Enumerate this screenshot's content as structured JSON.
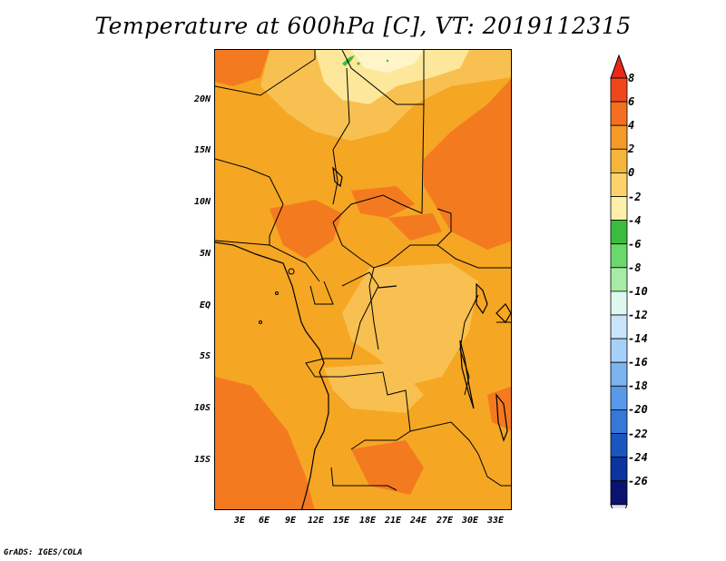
{
  "title": "Temperature at 600hPa [C], VT: 2019112315",
  "credit": "GrADS: IGES/COLA",
  "axes": {
    "lat_labels": [
      "20N",
      "15N",
      "10N",
      "5N",
      "EQ",
      "5S",
      "10S",
      "15S"
    ],
    "lon_labels": [
      "3E",
      "6E",
      "9E",
      "12E",
      "15E",
      "18E",
      "21E",
      "24E",
      "27E",
      "30E",
      "33E"
    ]
  },
  "colorbar": {
    "labels": [
      "8",
      "6",
      "4",
      "2",
      "0",
      "-2",
      "-4",
      "-6",
      "-8",
      "-10",
      "-12",
      "-14",
      "-16",
      "-18",
      "-20",
      "-22",
      "-24",
      "-26"
    ],
    "colors": [
      "#e8281a",
      "#f0461c",
      "#f47020",
      "#f59a26",
      "#f5b43a",
      "#fbd36a",
      "#fdf0a8",
      "#3cbc3c",
      "#6cd86c",
      "#a6eca6",
      "#def8f0",
      "#c8e4fa",
      "#a6d0f8",
      "#7cb4f0",
      "#5a98e8",
      "#3478d8",
      "#1a56c0",
      "#0c34a0",
      "#0a1470",
      "#e0e0f8"
    ]
  },
  "map_colors": {
    "base": "#f5a623",
    "warm": "#f47a20",
    "cool": "#f8c050",
    "cold": "#fde79a",
    "green": "#3cbc3c",
    "border": "#000000"
  }
}
